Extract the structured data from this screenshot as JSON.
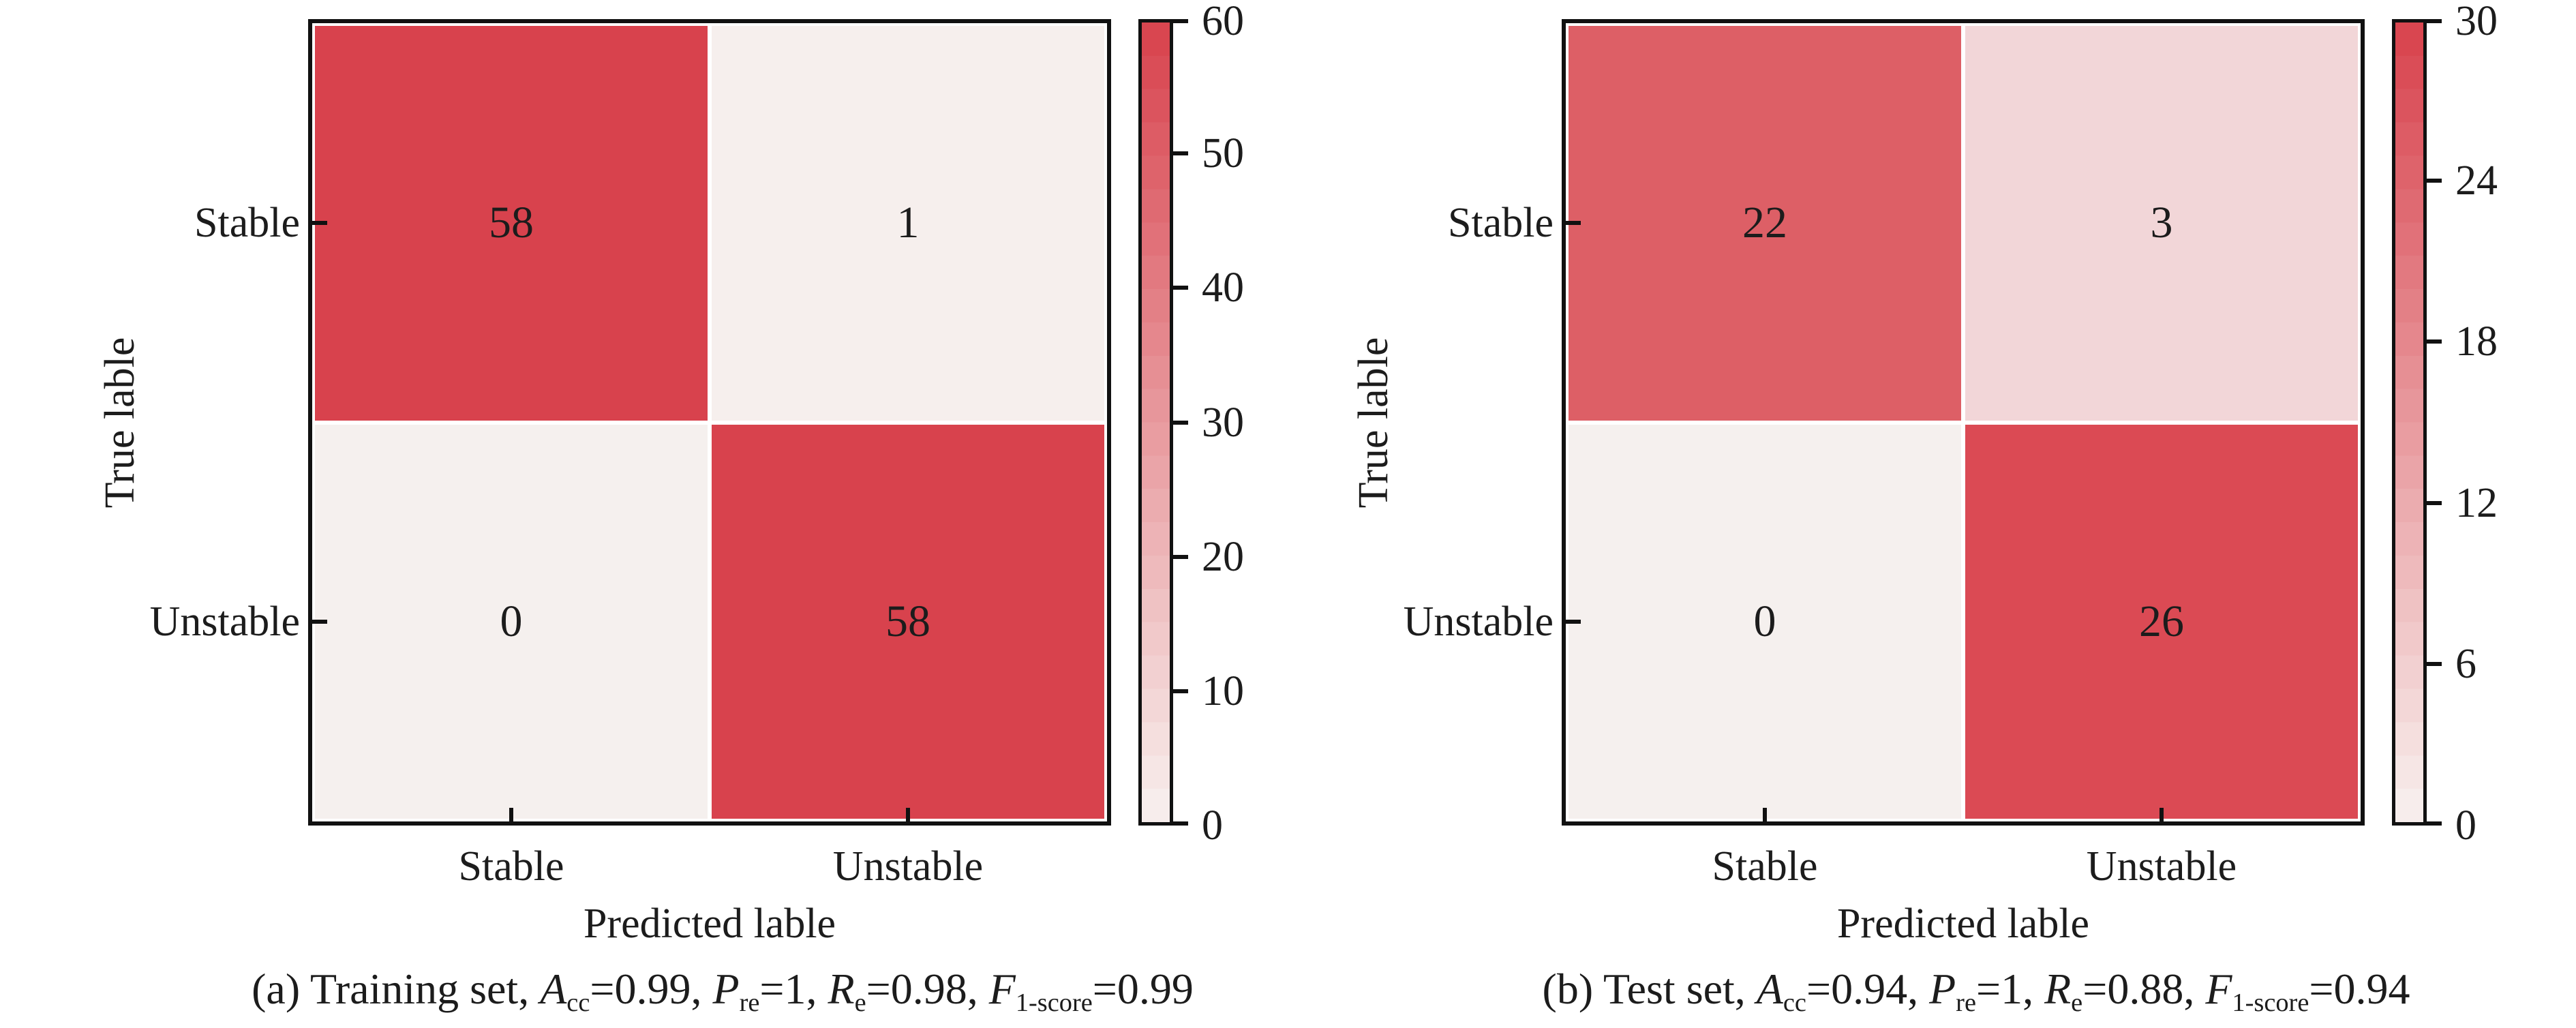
{
  "figure": {
    "background": "#ffffff",
    "text_color": "#1c1c1c",
    "spine_color": "#111111",
    "max_red": "#d8424d"
  },
  "chart_data": [
    {
      "type": "heatmap",
      "title": "(a) Training set, Acc=0.99, Pre=1, Re=0.98, F1-score=0.99",
      "x_categories": [
        "Stable",
        "Unstable"
      ],
      "y_categories": [
        "Stable",
        "Unstable"
      ],
      "xlabel": "Predicted lable",
      "ylabel": "True lable",
      "matrix": [
        [
          58,
          1
        ],
        [
          0,
          58
        ]
      ],
      "colorbar": {
        "min": 0,
        "max": 60,
        "ticks": [
          0,
          10,
          20,
          30,
          40,
          50,
          60
        ],
        "low_color": "#f8f1ef",
        "high_color": "#d8424d"
      },
      "legend_position": "right",
      "grid": false
    },
    {
      "type": "heatmap",
      "title": "(b) Test set, Acc=0.94, Pre=1, Re=0.88, F1-score=0.94",
      "x_categories": [
        "Stable",
        "Unstable"
      ],
      "y_categories": [
        "Stable",
        "Unstable"
      ],
      "xlabel": "Predicted lable",
      "ylabel": "True lable",
      "matrix": [
        [
          22,
          3
        ],
        [
          0,
          26
        ]
      ],
      "colorbar": {
        "min": 0,
        "max": 30,
        "ticks": [
          0,
          6,
          12,
          18,
          24,
          30
        ],
        "low_color": "#f8f1ef",
        "high_color": "#d8424d"
      },
      "legend_position": "right",
      "grid": false
    }
  ],
  "panels": [
    {
      "y_axis_title": "True lable",
      "x_axis_title": "Predicted lable",
      "y_tick_labels": [
        "Stable",
        "Unstable"
      ],
      "x_tick_labels": [
        "Stable",
        "Unstable"
      ],
      "cells": [
        [
          "58",
          "1"
        ],
        [
          "0",
          "58"
        ]
      ],
      "cell_colors": [
        [
          "#d8424d",
          "#f6efed"
        ],
        [
          "#f5f0ee",
          "#d8424d"
        ]
      ],
      "colorbar": {
        "low": "#f8f1ef",
        "high": "#d8424d",
        "steps": 24,
        "tick_labels": [
          "60",
          "50",
          "40",
          "30",
          "20",
          "10",
          "0"
        ]
      },
      "caption_parts": [
        {
          "text": "(a) Training set, ",
          "style": "plain"
        },
        {
          "text": "A",
          "style": "italic"
        },
        {
          "text": "cc",
          "style": "sub"
        },
        {
          "text": "=0.99, ",
          "style": "plain"
        },
        {
          "text": "P",
          "style": "italic"
        },
        {
          "text": "re",
          "style": "sub"
        },
        {
          "text": "=1, ",
          "style": "plain"
        },
        {
          "text": "R",
          "style": "italic"
        },
        {
          "text": "e",
          "style": "sub"
        },
        {
          "text": "=0.98, ",
          "style": "plain"
        },
        {
          "text": "F",
          "style": "italic"
        },
        {
          "text": "1-score",
          "style": "sub"
        },
        {
          "text": "=0.99",
          "style": "plain"
        }
      ]
    },
    {
      "y_axis_title": "True lable",
      "x_axis_title": "Predicted lable",
      "y_tick_labels": [
        "Stable",
        "Unstable"
      ],
      "x_tick_labels": [
        "Stable",
        "Unstable"
      ],
      "cells": [
        [
          "22",
          "3"
        ],
        [
          "0",
          "26"
        ]
      ],
      "cell_colors": [
        [
          "#dd5f66",
          "#f2d6d8"
        ],
        [
          "#f5f0ee",
          "#db4a54"
        ]
      ],
      "colorbar": {
        "low": "#f8f1ef",
        "high": "#d8424d",
        "steps": 24,
        "tick_labels": [
          "30",
          "24",
          "18",
          "12",
          "6",
          "0"
        ]
      },
      "caption_parts": [
        {
          "text": "(b) Test set, ",
          "style": "plain"
        },
        {
          "text": "A",
          "style": "italic"
        },
        {
          "text": "cc",
          "style": "sub"
        },
        {
          "text": "=0.94, ",
          "style": "plain"
        },
        {
          "text": "P",
          "style": "italic"
        },
        {
          "text": "re",
          "style": "sub"
        },
        {
          "text": "=1, ",
          "style": "plain"
        },
        {
          "text": "R",
          "style": "italic"
        },
        {
          "text": "e",
          "style": "sub"
        },
        {
          "text": "=0.88, ",
          "style": "plain"
        },
        {
          "text": "F",
          "style": "italic"
        },
        {
          "text": "1-score",
          "style": "sub"
        },
        {
          "text": "=0.94",
          "style": "plain"
        }
      ]
    }
  ]
}
